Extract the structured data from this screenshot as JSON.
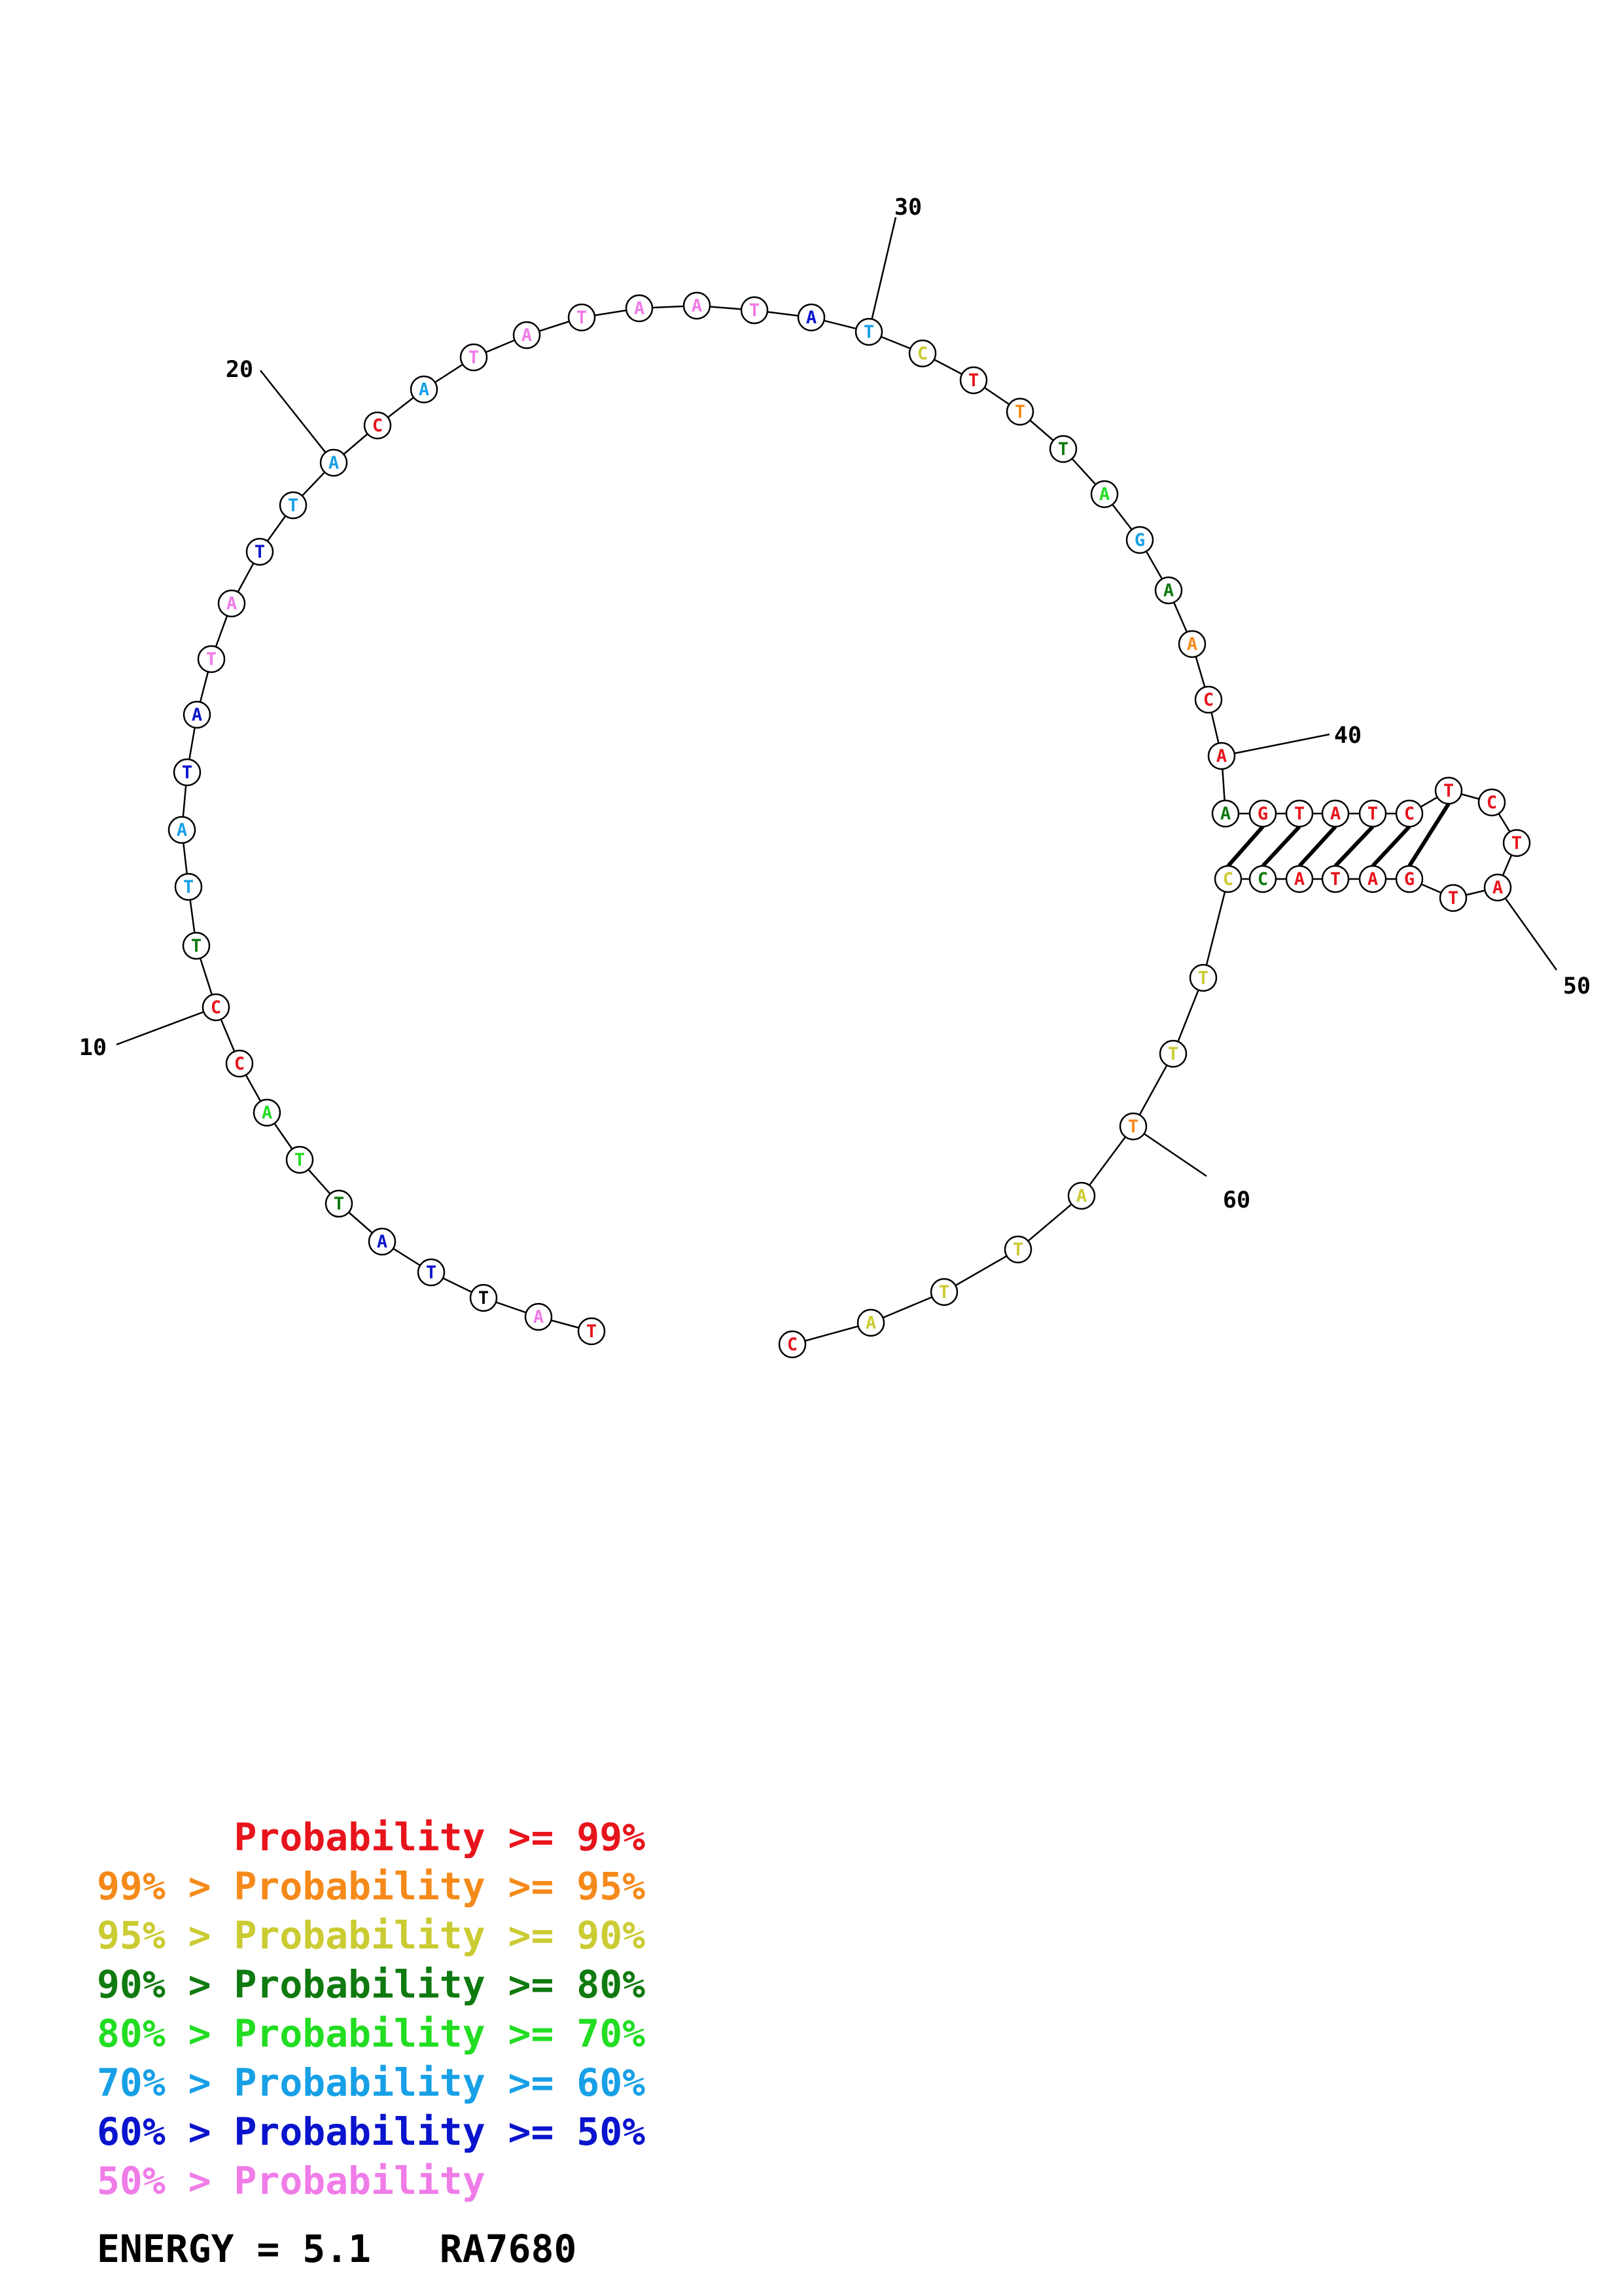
{
  "sequence": [
    "T",
    "A",
    "T",
    "T",
    "A",
    "T",
    "T",
    "A",
    "C",
    "C",
    "T",
    "T",
    "A",
    "T",
    "A",
    "T",
    "A",
    "T",
    "T",
    "A",
    "C",
    "A",
    "T",
    "A",
    "T",
    "A",
    "A",
    "T",
    "A",
    "T",
    "C",
    "T",
    "T",
    "T",
    "A",
    "G",
    "A",
    "A",
    "C",
    "A",
    "A",
    "G",
    "T",
    "A",
    "T",
    "C",
    "T",
    "C",
    "T",
    "A",
    "T",
    "G",
    "A",
    "T",
    "A",
    "C",
    "C",
    "T",
    "T",
    "T",
    "A",
    "T",
    "T",
    "A",
    "C"
  ],
  "probability_levels": [
    "red",
    "pink",
    "green",
    "blue",
    "blue",
    "dark-green",
    "light-green",
    "light-green",
    "red",
    "red",
    "dark-green",
    "cyan",
    "cyan",
    "blue",
    "blue",
    "pink",
    "pink",
    "blue",
    "cyan",
    "cyan",
    "red",
    "cyan",
    "pink",
    "pink",
    "pink",
    "pink",
    "pink",
    "pink",
    "blue",
    "cyan",
    "yellow",
    "red",
    "orange",
    "dark-green",
    "light-green",
    "cyan",
    "dark-green",
    "orange",
    "red",
    "red",
    "dark-green",
    "red",
    "red",
    "red",
    "red",
    "red",
    "red",
    "red",
    "red",
    "red",
    "red",
    "red",
    "red",
    "red",
    "red",
    "dark-green",
    "yellow",
    "yellow",
    "yellow",
    "orange",
    "yellow",
    "yellow",
    "yellow",
    "yellow",
    "red"
  ],
  "colors": {
    "red": "#e8141c",
    "orange": "#f58a1a",
    "yellow": "#cbcb33",
    "dark-green": "#0f7a0f",
    "light-green": "#22dd22",
    "cyan": "#18a0e6",
    "blue": "#0a14cc",
    "pink": "#f07ce8"
  },
  "base_pairs": [
    [
      41,
      56
    ],
    [
      42,
      55
    ],
    [
      43,
      54
    ],
    [
      44,
      53
    ],
    [
      45,
      52
    ],
    [
      46,
      51
    ]
  ],
  "position_markers": [
    "10",
    "20",
    "30",
    "40",
    "50",
    "60"
  ],
  "legend": [
    {
      "prefix": "",
      "label": "Probability >= 99%",
      "color": "red"
    },
    {
      "prefix": "99% > ",
      "label": "Probability >= 95%",
      "color": "orange"
    },
    {
      "prefix": "95% > ",
      "label": "Probability >= 90%",
      "color": "yellow"
    },
    {
      "prefix": "90% > ",
      "label": "Probability >= 80%",
      "color": "dark-green"
    },
    {
      "prefix": "80% > ",
      "label": "Probability >= 70%",
      "color": "light-green"
    },
    {
      "prefix": "70% > ",
      "label": "Probability >= 60%",
      "color": "cyan"
    },
    {
      "prefix": "60% > ",
      "label": "Probability >= 50%",
      "color": "blue"
    },
    {
      "prefix": "50% > ",
      "label": "Probability",
      "color": "pink"
    }
  ],
  "energy": "ENERGY = 5.1",
  "name": "RA7680"
}
